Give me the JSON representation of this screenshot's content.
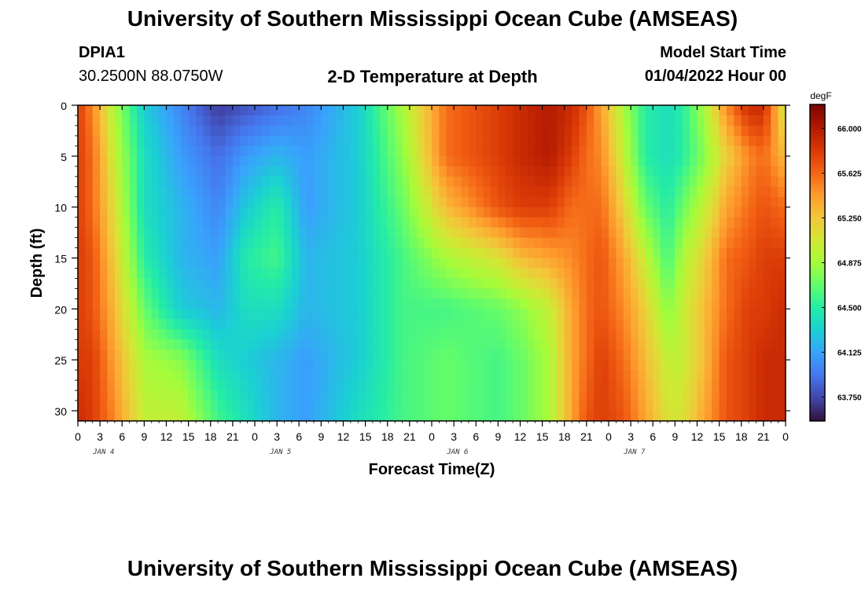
{
  "header": {
    "title": "University of Southern Mississippi Ocean Cube (AMSEAS)",
    "station_id": "DPIA1",
    "location": "30.2500N  88.0750W",
    "subtitle": "2-D Temperature at Depth",
    "model_start_label": "Model Start Time",
    "model_start_value": "01/04/2022 Hour 00",
    "repeat_title": "University of Southern Mississippi Ocean Cube (AMSEAS)"
  },
  "chart_data": {
    "type": "heatmap",
    "title": "2-D Temperature at Depth",
    "xlabel": "Forecast Time(Z)",
    "ylabel": "Depth (ft)",
    "x_tick_labels": [
      "0",
      "3",
      "6",
      "9",
      "12",
      "15",
      "18",
      "21",
      "0",
      "3",
      "6",
      "9",
      "12",
      "15",
      "18",
      "21",
      "0",
      "3",
      "6",
      "9",
      "12",
      "15",
      "18",
      "21",
      "0",
      "3",
      "6",
      "9",
      "12",
      "15",
      "18",
      "21",
      "0"
    ],
    "day_labels": [
      "JAN 4",
      "JAN 5",
      "JAN 6",
      "JAN 7"
    ],
    "y_ticks": [
      0,
      5,
      10,
      15,
      20,
      25,
      30
    ],
    "ylim": [
      0,
      31
    ],
    "xlim_hours": [
      0,
      96
    ],
    "colorbar": {
      "unit": "degF",
      "ticks": [
        "66.000",
        "65.625",
        "65.250",
        "64.875",
        "64.500",
        "64.125",
        "63.750"
      ],
      "range": [
        63.55,
        66.2
      ],
      "colors": [
        "#30123b",
        "#4145ab",
        "#4675ed",
        "#39a2fc",
        "#1bcfd4",
        "#24eca6",
        "#61fc6c",
        "#a4fc3b",
        "#d1e834",
        "#f3c63a",
        "#fe9b2d",
        "#f36315",
        "#d93806",
        "#b11901",
        "#7a0403"
      ]
    },
    "temperature_profile_by_time": {
      "hours": [
        0,
        2,
        5,
        9,
        14,
        19,
        23,
        27,
        31,
        38,
        44,
        50,
        57,
        60,
        64,
        67,
        69,
        71,
        74,
        77,
        80,
        82,
        85,
        88,
        91,
        93,
        96
      ],
      "depths_ft": [
        0,
        5,
        10,
        15,
        20,
        25,
        31
      ],
      "values_degF": [
        [
          65.8,
          65.8,
          65.8,
          65.8,
          65.8,
          65.8,
          65.9
        ],
        [
          65.5,
          65.6,
          65.6,
          65.7,
          65.7,
          65.8,
          65.8
        ],
        [
          64.9,
          65.0,
          65.1,
          65.2,
          65.3,
          65.4,
          65.5
        ],
        [
          64.3,
          64.4,
          64.4,
          64.5,
          64.7,
          64.9,
          65.0
        ],
        [
          64.0,
          64.1,
          64.2,
          64.2,
          64.3,
          64.8,
          65.0
        ],
        [
          63.7,
          63.9,
          64.0,
          64.1,
          64.2,
          64.4,
          64.6
        ],
        [
          63.8,
          64.1,
          64.3,
          64.5,
          64.4,
          64.3,
          64.4
        ],
        [
          63.9,
          64.2,
          64.5,
          64.6,
          64.4,
          64.2,
          64.2
        ],
        [
          64.0,
          64.1,
          64.1,
          64.2,
          64.2,
          64.1,
          64.1
        ],
        [
          64.3,
          64.3,
          64.3,
          64.3,
          64.3,
          64.3,
          64.4
        ],
        [
          64.9,
          64.8,
          64.7,
          64.6,
          64.6,
          64.6,
          64.6
        ],
        [
          65.6,
          65.6,
          65.3,
          64.9,
          64.6,
          64.7,
          64.7
        ],
        [
          65.8,
          65.8,
          65.7,
          65.1,
          64.7,
          64.6,
          64.6
        ],
        [
          65.9,
          65.9,
          65.8,
          65.3,
          64.8,
          64.7,
          64.7
        ],
        [
          66.0,
          66.0,
          65.8,
          65.4,
          65.0,
          64.9,
          64.9
        ],
        [
          65.9,
          65.8,
          65.6,
          65.5,
          65.4,
          65.4,
          65.4
        ],
        [
          65.7,
          65.6,
          65.6,
          65.6,
          65.6,
          65.6,
          65.7
        ],
        [
          65.4,
          65.5,
          65.6,
          65.7,
          65.7,
          65.8,
          65.8
        ],
        [
          64.9,
          65.0,
          65.2,
          65.4,
          65.5,
          65.6,
          65.7
        ],
        [
          64.5,
          64.5,
          64.7,
          65.0,
          65.2,
          65.3,
          65.4
        ],
        [
          64.4,
          64.4,
          64.5,
          64.6,
          64.8,
          65.0,
          65.1
        ],
        [
          64.5,
          64.5,
          64.7,
          64.9,
          65.0,
          65.0,
          65.1
        ],
        [
          64.9,
          64.8,
          65.0,
          65.2,
          65.3,
          65.3,
          65.4
        ],
        [
          65.5,
          65.2,
          65.4,
          65.6,
          65.6,
          65.7,
          65.7
        ],
        [
          65.9,
          65.5,
          65.6,
          65.7,
          65.8,
          65.8,
          65.8
        ],
        [
          65.9,
          65.6,
          65.7,
          65.8,
          65.8,
          65.9,
          65.9
        ],
        [
          65.0,
          65.3,
          65.6,
          65.8,
          65.9,
          65.9,
          65.9
        ]
      ]
    }
  }
}
